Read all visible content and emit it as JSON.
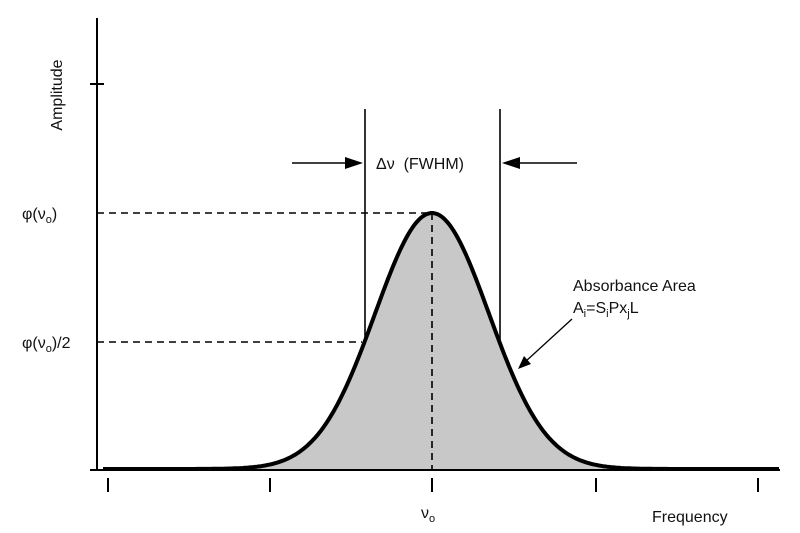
{
  "diagram": {
    "y_axis_label": "Amplitude",
    "x_axis_label": "Frequency",
    "peak_level_label": {
      "main": "φ(ν",
      "sub": "o",
      "tail": ")"
    },
    "half_level_label": {
      "main": "φ(ν",
      "sub": "o",
      "tail": ")/2"
    },
    "center_label": {
      "main": "ν",
      "sub": "o"
    },
    "fwhm_label": "Δν  (FWHM)",
    "area_title": "Absorbance Area",
    "area_formula": {
      "a": "A",
      "a_sub": "i",
      "eq": "=S",
      "s_sub": "i",
      "px": "Px",
      "x_sub": "j",
      "tail": "L"
    },
    "curve_fill_color": "#c8c8c8",
    "curve_line_color": "#000000"
  }
}
